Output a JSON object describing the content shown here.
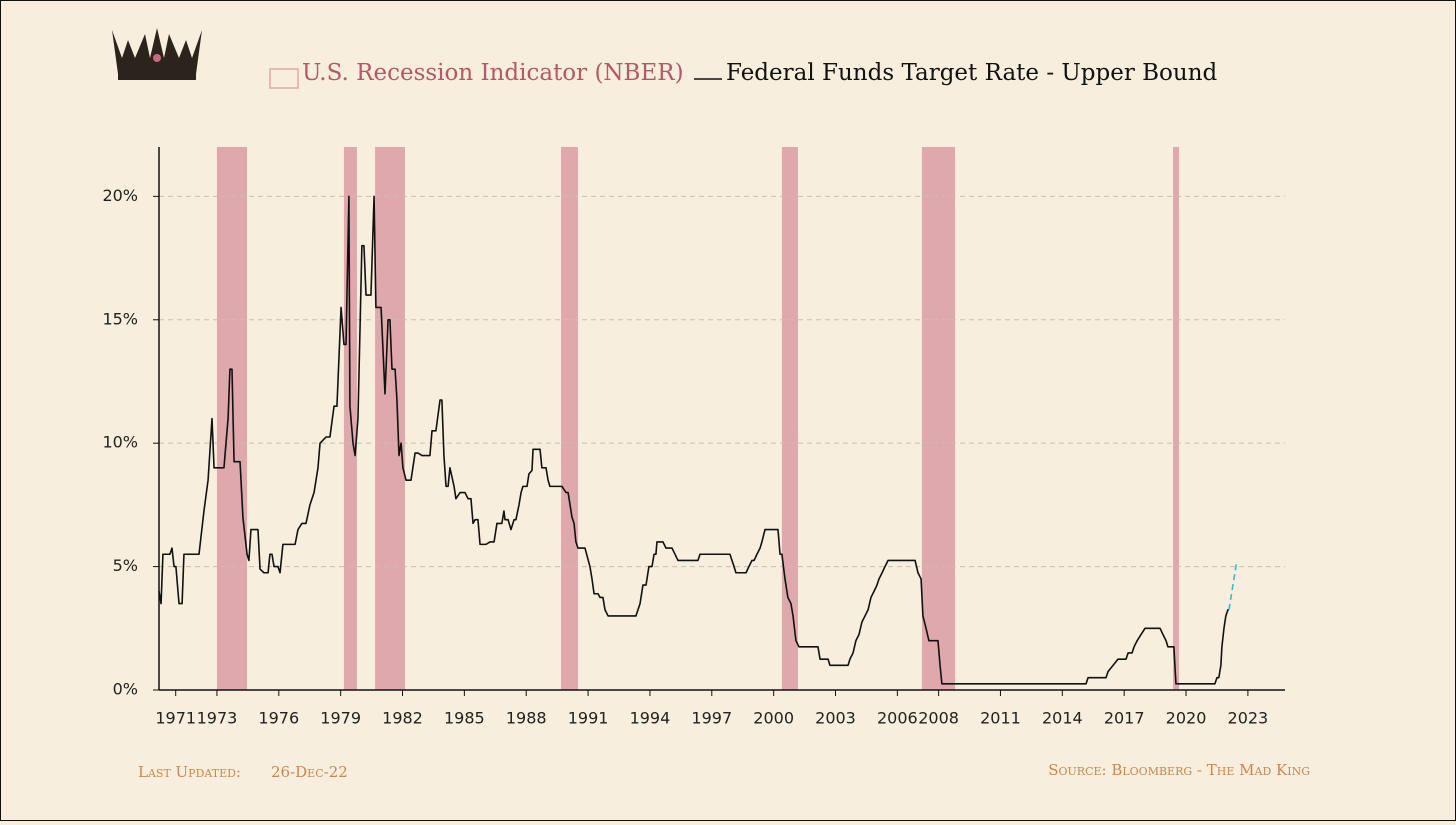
{
  "chart_data": {
    "type": "line",
    "legend": {
      "position": "top"
    },
    "bands": {
      "name": "U.S. Recession Indicator (NBER)",
      "color": "#dfa8ad",
      "text_color": "#b5576a",
      "start": [
        1973.0,
        1979.16,
        1980.67,
        1989.69,
        2000.4,
        2007.19,
        2019.37
      ],
      "end": [
        1974.46,
        1979.79,
        1982.12,
        1990.51,
        2001.18,
        2008.8,
        2019.66
      ]
    },
    "series": [
      {
        "name": "Federal Funds Target Rate - Upper Bound",
        "color": "#111111",
        "x": [
          1970.19,
          1970.29,
          1970.38,
          1970.72,
          1970.82,
          1970.92,
          1971.01,
          1971.16,
          1971.31,
          1971.4,
          1972.13,
          1972.37,
          1972.57,
          1972.76,
          1972.86,
          1973.34,
          1973.54,
          1973.63,
          1973.73,
          1973.83,
          1974.12,
          1974.26,
          1974.46,
          1974.55,
          1974.65,
          1974.99,
          1975.09,
          1975.28,
          1975.48,
          1975.57,
          1975.67,
          1975.77,
          1975.96,
          1976.06,
          1976.2,
          1976.79,
          1976.93,
          1977.12,
          1977.32,
          1977.51,
          1977.71,
          1977.9,
          1978.0,
          1978.29,
          1978.48,
          1978.68,
          1978.82,
          1979.02,
          1979.16,
          1979.26,
          1979.4,
          1979.45,
          1979.6,
          1979.7,
          1979.84,
          1980.03,
          1980.13,
          1980.23,
          1980.47,
          1980.62,
          1980.71,
          1980.96,
          1981.15,
          1981.3,
          1981.39,
          1981.49,
          1981.64,
          1981.73,
          1981.83,
          1981.93,
          1982.02,
          1982.17,
          1982.41,
          1982.61,
          1982.75,
          1982.95,
          1983.33,
          1983.43,
          1983.62,
          1983.82,
          1983.91,
          1984.01,
          1984.11,
          1984.21,
          1984.3,
          1984.5,
          1984.59,
          1984.79,
          1985.03,
          1985.18,
          1985.32,
          1985.42,
          1985.52,
          1985.66,
          1985.76,
          1986.05,
          1986.24,
          1986.44,
          1986.58,
          1986.82,
          1986.92,
          1986.97,
          1987.12,
          1987.26,
          1987.41,
          1987.5,
          1987.65,
          1987.75,
          1987.84,
          1988.04,
          1988.13,
          1988.28,
          1988.33,
          1988.67,
          1988.76,
          1988.96,
          1989.06,
          1989.15,
          1989.73,
          1989.93,
          1990.03,
          1990.22,
          1990.32,
          1990.41,
          1990.51,
          1990.85,
          1991.09,
          1991.19,
          1991.29,
          1991.48,
          1991.58,
          1991.72,
          1991.82,
          1991.97,
          1993.32,
          1993.52,
          1993.66,
          1993.81,
          1993.95,
          1994.1,
          1994.2,
          1994.29,
          1994.34,
          1994.63,
          1994.78,
          1995.07,
          1995.36,
          1996.33,
          1996.43,
          1997.88,
          1998.08,
          1998.17,
          1998.66,
          1998.8,
          1998.95,
          1999.05,
          1999.19,
          1999.34,
          1999.43,
          1999.58,
          2000.21,
          2000.31,
          2000.4,
          2000.55,
          2000.69,
          2000.84,
          2000.94,
          2001.08,
          2001.23,
          2002.15,
          2002.25,
          2002.64,
          2002.73,
          2003.61,
          2003.7,
          2003.85,
          2003.99,
          2004.14,
          2004.28,
          2004.43,
          2004.58,
          2004.72,
          2004.87,
          2005.01,
          2005.11,
          2005.26,
          2005.4,
          2005.55,
          2006.86,
          2007.0,
          2007.15,
          2007.24,
          2007.39,
          2007.53,
          2007.97,
          2008.07,
          2008.16,
          2008.31,
          2015.15,
          2015.25,
          2016.12,
          2016.22,
          2016.46,
          2016.7,
          2017.09,
          2017.19,
          2017.38,
          2017.48,
          2017.63,
          2017.82,
          2018.01,
          2018.74,
          2018.88,
          2019.03,
          2019.12,
          2019.41,
          2019.51,
          2021.4,
          2021.5,
          2021.59,
          2021.69,
          2021.74,
          2021.84,
          2021.93,
          2022.03,
          2022.08
        ],
        "values": [
          4.0,
          3.5,
          5.5,
          5.5,
          5.75,
          5.0,
          5.0,
          3.5,
          3.5,
          5.5,
          5.5,
          7.25,
          8.5,
          11.0,
          9.0,
          9.0,
          11.0,
          13.0,
          13.0,
          9.25,
          9.25,
          7.0,
          5.5,
          5.25,
          6.5,
          6.5,
          4.9,
          4.75,
          4.75,
          5.5,
          5.5,
          5.0,
          5.0,
          4.75,
          5.9,
          5.9,
          6.5,
          6.75,
          6.75,
          7.5,
          8.0,
          9.0,
          10.0,
          10.25,
          10.25,
          11.5,
          11.5,
          15.5,
          14.0,
          14.0,
          20.0,
          11.5,
          10.0,
          9.5,
          11.0,
          18.0,
          18.0,
          16.0,
          16.0,
          20.0,
          15.5,
          15.5,
          12.0,
          15.0,
          15.0,
          13.0,
          13.0,
          11.75,
          9.5,
          10.0,
          9.0,
          8.5,
          8.5,
          9.6,
          9.6,
          9.5,
          9.5,
          10.5,
          10.5,
          11.75,
          11.75,
          9.5,
          8.25,
          8.25,
          9.0,
          8.25,
          7.75,
          8.0,
          8.0,
          7.75,
          7.75,
          6.75,
          6.9,
          6.9,
          5.9,
          5.9,
          6.0,
          6.0,
          6.75,
          6.75,
          7.25,
          6.9,
          6.9,
          6.5,
          6.9,
          6.9,
          7.5,
          8.0,
          8.25,
          8.25,
          8.75,
          8.9,
          9.75,
          9.75,
          9.0,
          9.0,
          8.5,
          8.25,
          8.25,
          8.0,
          8.0,
          7.0,
          6.75,
          6.0,
          5.75,
          5.75,
          5.0,
          4.5,
          3.9,
          3.9,
          3.75,
          3.75,
          3.25,
          3.0,
          3.0,
          3.5,
          4.25,
          4.25,
          5.0,
          5.0,
          5.5,
          5.5,
          6.0,
          6.0,
          5.75,
          5.75,
          5.25,
          5.25,
          5.5,
          5.5,
          5.0,
          4.75,
          4.75,
          5.0,
          5.25,
          5.25,
          5.5,
          5.75,
          6.0,
          6.5,
          6.5,
          5.5,
          5.5,
          4.5,
          3.75,
          3.5,
          3.0,
          2.0,
          1.75,
          1.75,
          1.25,
          1.25,
          1.0,
          1.0,
          1.25,
          1.5,
          2.0,
          2.25,
          2.75,
          3.0,
          3.25,
          3.75,
          4.0,
          4.25,
          4.5,
          4.75,
          5.0,
          5.25,
          5.25,
          4.75,
          4.5,
          3.0,
          2.5,
          2.0,
          2.0,
          1.0,
          0.25,
          0.25,
          0.25,
          0.5,
          0.5,
          0.75,
          1.0,
          1.25,
          1.25,
          1.5,
          1.5,
          1.75,
          2.0,
          2.25,
          2.5,
          2.5,
          2.25,
          2.0,
          1.75,
          1.75,
          0.25,
          0.25,
          0.5,
          0.5,
          1.0,
          1.75,
          2.5,
          3.0,
          3.25,
          3.25
        ]
      },
      {
        "color": "#3bb8c8",
        "dash": true,
        "x": [
          2022.08,
          2022.47
        ],
        "values": [
          3.25,
          5.25
        ]
      }
    ],
    "xlim": [
      1970.19,
      2024.8
    ],
    "xticks": [
      1971,
      1973,
      1976,
      1979,
      1982,
      1985,
      1988,
      1991,
      1994,
      1997,
      2000,
      2003,
      2006,
      2008,
      2011,
      2014,
      2017,
      2020,
      2023
    ],
    "ylim": [
      0,
      22
    ],
    "yticks": [
      {
        "value": 0,
        "label": "0%"
      },
      {
        "value": 5,
        "label": "5%"
      },
      {
        "value": 10,
        "label": "10%"
      },
      {
        "value": 15,
        "label": "15%"
      },
      {
        "value": 20,
        "label": "20%"
      }
    ],
    "grid": true,
    "footer": {
      "updated_label": "Last Updated:",
      "updated": "26-Dec-22",
      "source": "Source: Bloomberg - The Mad King"
    }
  }
}
